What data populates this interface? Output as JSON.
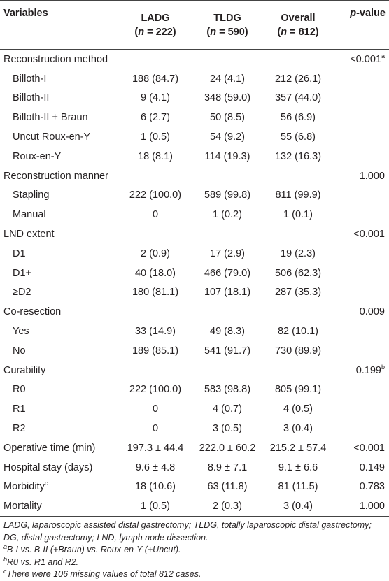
{
  "header": {
    "variables": "Variables",
    "groups": [
      {
        "name": "LADG",
        "open": "(",
        "n_symbol": "n",
        "count": " = 222)"
      },
      {
        "name": "TLDG",
        "open": "(",
        "n_symbol": "n",
        "count": " = 590)"
      },
      {
        "name": "Overall",
        "open": "(",
        "n_symbol": "n",
        "count": " = 812)"
      }
    ],
    "p_symbol": "p",
    "p_label": "-value"
  },
  "sections": [
    {
      "label": "Reconstruction method",
      "p": {
        "text": "<0.001",
        "sup": "a"
      },
      "rows": [
        [
          "Billoth-I",
          "188 (84.7)",
          "24 (4.1)",
          "212 (26.1)"
        ],
        [
          "Billoth-II",
          "9 (4.1)",
          "348 (59.0)",
          "357 (44.0)"
        ],
        [
          "Billoth-II + Braun",
          "6 (2.7)",
          "50 (8.5)",
          "56 (6.9)"
        ],
        [
          "Uncut Roux-en-Y",
          "1 (0.5)",
          "54 (9.2)",
          "55 (6.8)"
        ],
        [
          "Roux-en-Y",
          "18 (8.1)",
          "114 (19.3)",
          "132 (16.3)"
        ]
      ]
    },
    {
      "label": "Reconstruction manner",
      "p": "1.000",
      "rows": [
        [
          "Stapling",
          "222 (100.0)",
          "589 (99.8)",
          "811 (99.9)"
        ],
        [
          "Manual",
          "0",
          "1 (0.2)",
          "1 (0.1)"
        ]
      ]
    },
    {
      "label": "LND extent",
      "p": "<0.001",
      "rows": [
        [
          "D1",
          "2 (0.9)",
          "17 (2.9)",
          "19 (2.3)"
        ],
        [
          "D1+",
          "40 (18.0)",
          "466 (79.0)",
          "506 (62.3)"
        ],
        [
          "≥D2",
          "180 (81.1)",
          "107 (18.1)",
          "287 (35.3)"
        ]
      ]
    },
    {
      "label": "Co-resection",
      "p": "0.009",
      "rows": [
        [
          "Yes",
          "33 (14.9)",
          "49 (8.3)",
          "82 (10.1)"
        ],
        [
          "No",
          "189 (85.1)",
          "541 (91.7)",
          "730 (89.9)"
        ]
      ]
    },
    {
      "label": "Curability",
      "p": {
        "text": "0.199",
        "sup": "b"
      },
      "rows": [
        [
          "R0",
          "222 (100.0)",
          "583 (98.8)",
          "805 (99.1)"
        ],
        [
          "R1",
          "0",
          "4 (0.7)",
          "4 (0.5)"
        ],
        [
          "R2",
          "0",
          "3 (0.5)",
          "3 (0.4)"
        ]
      ]
    },
    {
      "label": "Operative time (min)",
      "values": [
        "197.3 ± 44.4",
        "222.0 ± 60.2",
        "215.2 ± 57.4"
      ],
      "p": "<0.001"
    },
    {
      "label": "Hospital stay (days)",
      "values": [
        "9.6 ± 4.8",
        "8.9 ± 7.1",
        "9.1 ± 6.6"
      ],
      "p": "0.149"
    },
    {
      "label": {
        "text": "Morbidity",
        "sup": "c"
      },
      "values": [
        "18 (10.6)",
        "63 (11.8)",
        "81 (11.5)"
      ],
      "p": "0.783"
    },
    {
      "label": "Mortality",
      "values": [
        "1 (0.5)",
        "2 (0.3)",
        "3 (0.4)"
      ],
      "p": "1.000"
    }
  ],
  "footnotes": {
    "abbreviations": "LADG, laparoscopic assisted distal gastrectomy; TLDG, totally laparoscopic distal gastrectomy; DG, distal gastrectomy; LND, lymph node dissection.",
    "notes": [
      {
        "mark": "a",
        "text": "B-I vs. B-II (+Braun) vs. Roux-en-Y (+Uncut)."
      },
      {
        "mark": "b",
        "text": "R0 vs. R1 and R2."
      },
      {
        "mark": "c",
        "text": "There were 106 missing values of total 812 cases."
      }
    ]
  }
}
